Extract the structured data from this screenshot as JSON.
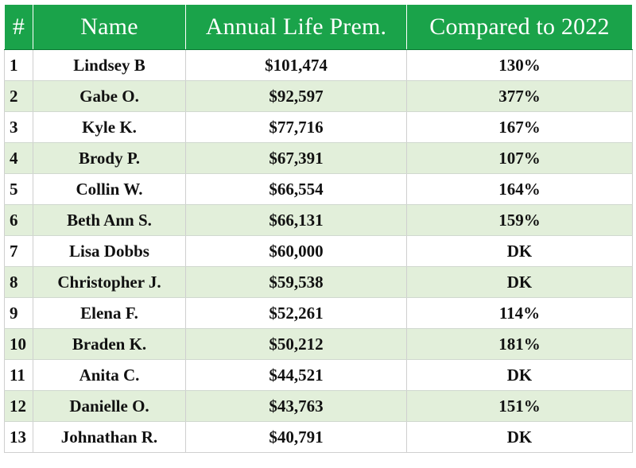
{
  "table": {
    "headers": {
      "rank": "#",
      "name": "Name",
      "premium": "Annual Life Prem.",
      "compared": "Compared to 2022"
    },
    "rows": [
      {
        "rank": "1",
        "name": "Lindsey B",
        "premium": "$101,474",
        "compared": "130%"
      },
      {
        "rank": "2",
        "name": "Gabe O.",
        "premium": "$92,597",
        "compared": "377%"
      },
      {
        "rank": "3",
        "name": "Kyle K.",
        "premium": "$77,716",
        "compared": "167%"
      },
      {
        "rank": "4",
        "name": "Brody P.",
        "premium": "$67,391",
        "compared": "107%"
      },
      {
        "rank": "5",
        "name": "Collin W.",
        "premium": "$66,554",
        "compared": "164%"
      },
      {
        "rank": "6",
        "name": "Beth Ann S.",
        "premium": "$66,131",
        "compared": "159%"
      },
      {
        "rank": "7",
        "name": "Lisa Dobbs",
        "premium": "$60,000",
        "compared": "DK"
      },
      {
        "rank": "8",
        "name": "Christopher J.",
        "premium": "$59,538",
        "compared": "DK"
      },
      {
        "rank": "9",
        "name": "Elena F.",
        "premium": "$52,261",
        "compared": "114%"
      },
      {
        "rank": "10",
        "name": "Braden K.",
        "premium": "$50,212",
        "compared": "181%"
      },
      {
        "rank": "11",
        "name": "Anita C.",
        "premium": "$44,521",
        "compared": "DK"
      },
      {
        "rank": "12",
        "name": "Danielle O.",
        "premium": "$43,763",
        "compared": "151%"
      },
      {
        "rank": "13",
        "name": "Johnathan R.",
        "premium": "$40,791",
        "compared": "DK"
      }
    ]
  },
  "colors": {
    "header_bg": "#1aa34a",
    "header_text": "#ffffff",
    "alt_row_bg": "#e2efda"
  }
}
